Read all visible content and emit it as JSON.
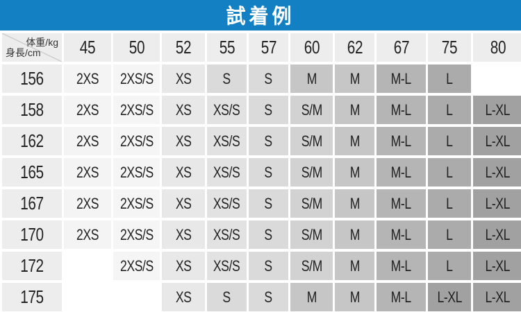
{
  "title_bar": {
    "label": "試着例"
  },
  "colors": {
    "header_bar_bg": "#1480c4",
    "header_bar_text": "#ffffff",
    "axis_header_bg": "#ededed",
    "empty_cell_bg": "#ffffff",
    "cell_text": "#222222",
    "diagonal_line": "#cccccc",
    "size_shades": {
      "2XS": "#f4f4f4",
      "2XS/S": "#f5f5f5",
      "XS": "#e8e8e8",
      "XS/S": "#e2e2e2",
      "S": "#dadada",
      "S/M": "#d2d2d2",
      "M": "#c6c6c6",
      "M-L": "#b5b5b5",
      "L": "#ababab",
      "L-XL": "#a1a1a1"
    }
  },
  "chart_data": {
    "type": "table",
    "title": "試着例",
    "x_header": "体重/kg",
    "y_header": "身長/cm",
    "columns": [
      "45",
      "50",
      "52",
      "55",
      "57",
      "60",
      "62",
      "67",
      "75",
      "80"
    ],
    "rows": [
      {
        "height": "156",
        "sizes": [
          "2XS",
          "2XS/S",
          "XS",
          "S",
          "S",
          "M",
          "M",
          "M-L",
          "L",
          ""
        ]
      },
      {
        "height": "158",
        "sizes": [
          "2XS",
          "2XS/S",
          "XS",
          "XS/S",
          "S",
          "S/M",
          "M",
          "M-L",
          "L",
          "L-XL"
        ]
      },
      {
        "height": "162",
        "sizes": [
          "2XS",
          "2XS/S",
          "XS",
          "XS/S",
          "S",
          "S/M",
          "M",
          "M-L",
          "L",
          "L-XL"
        ]
      },
      {
        "height": "165",
        "sizes": [
          "2XS",
          "2XS/S",
          "XS",
          "XS/S",
          "S",
          "S/M",
          "M",
          "M-L",
          "L",
          "L-XL"
        ]
      },
      {
        "height": "167",
        "sizes": [
          "2XS",
          "2XS/S",
          "XS",
          "XS/S",
          "S",
          "S/M",
          "M",
          "M-L",
          "L",
          "L-XL"
        ]
      },
      {
        "height": "170",
        "sizes": [
          "2XS",
          "2XS/S",
          "XS",
          "XS/S",
          "S",
          "S/M",
          "M",
          "M-L",
          "L",
          "L-XL"
        ]
      },
      {
        "height": "172",
        "sizes": [
          "",
          "2XS/S",
          "XS",
          "XS/S",
          "S",
          "S/M",
          "M",
          "M-L",
          "L",
          "L-XL"
        ]
      },
      {
        "height": "175",
        "sizes": [
          "",
          "",
          "XS",
          "S",
          "S",
          "M",
          "M",
          "M-L",
          "L-XL",
          "L-XL"
        ]
      }
    ]
  }
}
